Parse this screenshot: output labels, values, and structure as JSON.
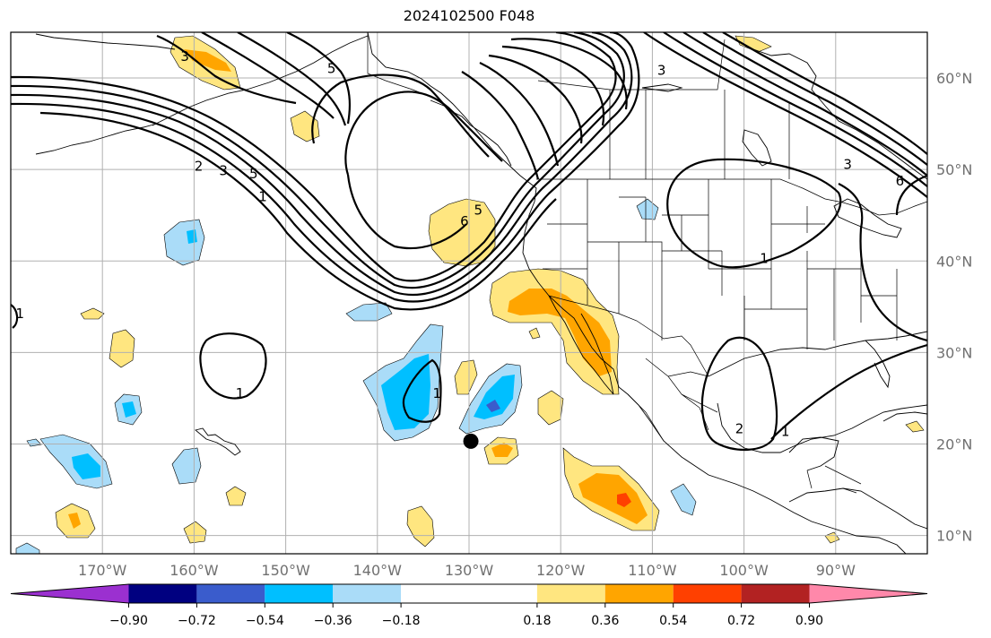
{
  "title": "2024102500 F048",
  "map": {
    "lon_range": [
      -180,
      -80
    ],
    "lat_range": [
      8,
      65
    ],
    "lon_ticks": [
      {
        "value": -170,
        "label": "170°W"
      },
      {
        "value": -160,
        "label": "160°W"
      },
      {
        "value": -150,
        "label": "150°W"
      },
      {
        "value": -140,
        "label": "140°W"
      },
      {
        "value": -130,
        "label": "130°W"
      },
      {
        "value": -120,
        "label": "120°W"
      },
      {
        "value": -110,
        "label": "110°W"
      },
      {
        "value": -100,
        "label": "100°W"
      },
      {
        "value": -90,
        "label": "90°W"
      }
    ],
    "lat_ticks": [
      {
        "value": 60,
        "label": "60°N"
      },
      {
        "value": 50,
        "label": "50°N"
      },
      {
        "value": 40,
        "label": "40°N"
      },
      {
        "value": 30,
        "label": "30°N"
      },
      {
        "value": 20,
        "label": "20°N"
      },
      {
        "value": 10,
        "label": "10°N"
      }
    ],
    "marker": {
      "lon": -129.8,
      "lat": 20.3,
      "color": "#000000"
    },
    "contour_labels": [
      {
        "text": "5",
        "lon": -153.5,
        "lat": 49.5
      },
      {
        "text": "3",
        "lon": -156.8,
        "lat": 49.8
      },
      {
        "text": "2",
        "lon": -159.5,
        "lat": 50.3
      },
      {
        "text": "1",
        "lon": -152.5,
        "lat": 47.0
      },
      {
        "text": "5",
        "lon": -145,
        "lat": 61.0
      },
      {
        "text": "3",
        "lon": -161,
        "lat": 62.3
      },
      {
        "text": "6",
        "lon": -130.5,
        "lat": 44.3
      },
      {
        "text": "5",
        "lon": -129,
        "lat": 45.5
      },
      {
        "text": "1",
        "lon": -133.5,
        "lat": 25.5
      },
      {
        "text": "1",
        "lon": -155,
        "lat": 25.5
      },
      {
        "text": "1",
        "lon": -97.8,
        "lat": 40.2
      },
      {
        "text": "2",
        "lon": -100.5,
        "lat": 21.6
      },
      {
        "text": "1",
        "lon": -95.5,
        "lat": 21.3
      },
      {
        "text": "3",
        "lon": -109,
        "lat": 60.8
      },
      {
        "text": "3",
        "lon": -88.7,
        "lat": 50.5
      },
      {
        "text": "6",
        "lon": -83,
        "lat": 48.7
      },
      {
        "text": "1",
        "lon": -179,
        "lat": 34.2
      }
    ]
  },
  "colorbar": {
    "boundaries": [
      -0.9,
      -0.72,
      -0.54,
      -0.36,
      -0.18,
      0.18,
      0.36,
      0.54,
      0.72,
      0.9
    ],
    "labels": [
      "−0.90",
      "−0.72",
      "−0.54",
      "−0.36",
      "−0.18",
      "0.18",
      "0.36",
      "0.54",
      "0.72",
      "0.90"
    ],
    "colors": [
      "#9b30d0",
      "#000080",
      "#3a5ccc",
      "#00bfff",
      "#aadcf8",
      "#ffffff",
      "#ffe680",
      "#ffa500",
      "#ff4000",
      "#b22222",
      "#ff88aa"
    ]
  }
}
